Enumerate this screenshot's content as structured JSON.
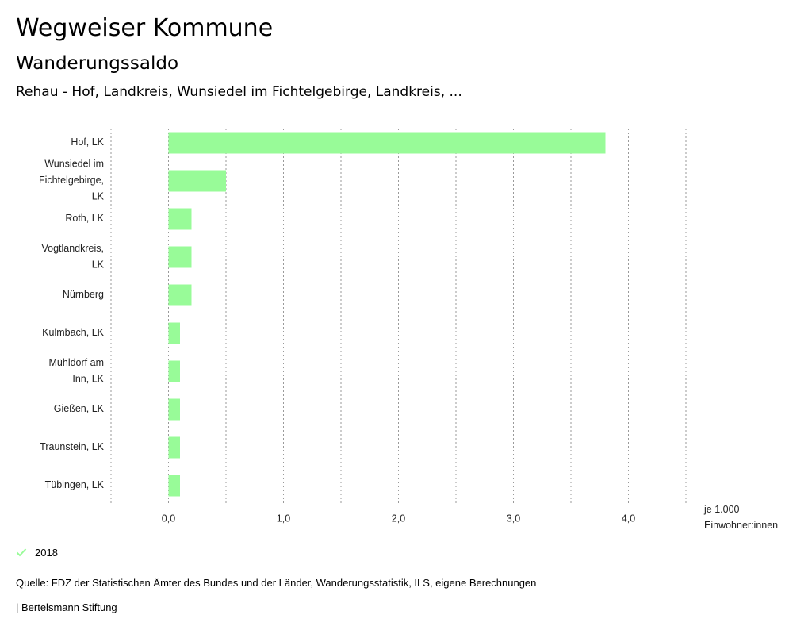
{
  "header": {
    "title": "Wegweiser Kommune",
    "subtitle": "Wanderungssaldo",
    "region": "Rehau - Hof, Landkreis, Wunsiedel im Fichtelgebirge, Landkreis, ..."
  },
  "colors": {
    "bar": "#98fb98",
    "grid": "#9a9a9a",
    "text": "#222222"
  },
  "chart_data": {
    "type": "bar",
    "orientation": "horizontal",
    "categories": [
      "Hof, LK",
      "Wunsiedel im Fichtelgebirge, LK",
      "Roth, LK",
      "Vogtlandkreis, LK",
      "Nürnberg",
      "Kulmbach, LK",
      "Mühldorf am Inn, LK",
      "Gießen, LK",
      "Traunstein, LK",
      "Tübingen, LK"
    ],
    "category_lines": [
      [
        "Hof, LK"
      ],
      [
        "Wunsiedel im",
        "Fichtelgebirge,",
        "LK"
      ],
      [
        "Roth, LK"
      ],
      [
        "Vogtlandkreis,",
        "LK"
      ],
      [
        "Nürnberg"
      ],
      [
        "Kulmbach, LK"
      ],
      [
        "Mühldorf am",
        "Inn, LK"
      ],
      [
        "Gießen, LK"
      ],
      [
        "Traunstein, LK"
      ],
      [
        "Tübingen, LK"
      ]
    ],
    "series": [
      {
        "name": "2018",
        "values": [
          3.8,
          0.5,
          0.2,
          0.2,
          0.2,
          0.1,
          0.1,
          0.1,
          0.1,
          0.1
        ]
      }
    ],
    "xlim": [
      -0.5,
      4.5
    ],
    "gridlines": [
      -0.5,
      0,
      0.5,
      1,
      1.5,
      2,
      2.5,
      3,
      3.5,
      4,
      4.5
    ],
    "xticks": [
      0,
      1,
      2,
      3,
      4
    ],
    "xtick_labels": [
      "0,0",
      "1,0",
      "2,0",
      "3,0",
      "4,0"
    ],
    "unit_lines": [
      "je 1.000",
      "Einwohner:innen"
    ],
    "grid": true,
    "legend_position": "bottom-left"
  },
  "legend": {
    "items": [
      {
        "label": "2018"
      }
    ]
  },
  "footer": {
    "source": "Quelle: FDZ der Statistischen Ämter des Bundes und der Länder, Wanderungsstatistik, ILS, eigene Berechnungen",
    "credit": "| Bertelsmann Stiftung"
  }
}
